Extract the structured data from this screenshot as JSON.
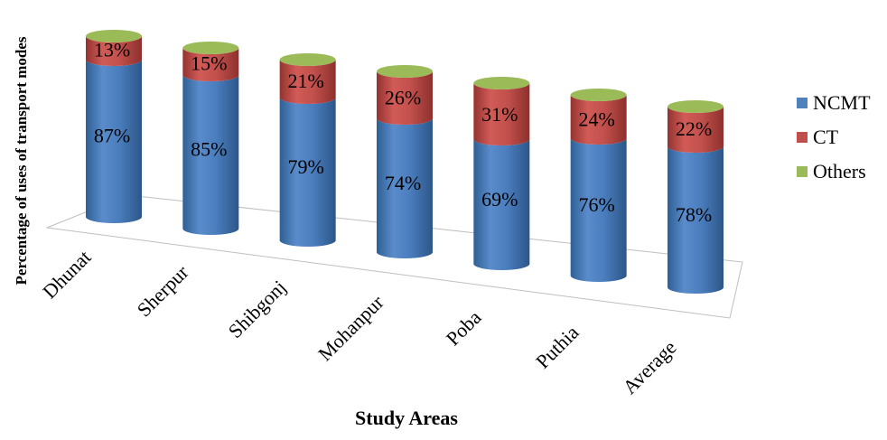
{
  "chart_data": {
    "type": "bar",
    "stacked": true,
    "style": "3d-cylinder",
    "categories": [
      "Dhunat",
      "Sherpur",
      "Shibgonj",
      "Mohanpur",
      "Poba",
      "Puthia",
      "Average"
    ],
    "series": [
      {
        "name": "NCMT",
        "values": [
          87,
          85,
          79,
          74,
          69,
          76,
          78
        ],
        "labels": [
          "87%",
          "85%",
          "79%",
          "74%",
          "69%",
          "76%",
          "78%"
        ],
        "color": "#4F81BD"
      },
      {
        "name": "CT",
        "values": [
          13,
          15,
          21,
          26,
          31,
          24,
          22
        ],
        "labels": [
          "13%",
          "15%",
          "21%",
          "26%",
          "31%",
          "24%",
          "22%"
        ],
        "color": "#C0504D"
      },
      {
        "name": "Others",
        "values": [
          0,
          0,
          0,
          0,
          0,
          0,
          0
        ],
        "color": "#9BBB59"
      }
    ],
    "xlabel": "Study Areas",
    "ylabel": "Percentage of uses of transport modes",
    "ylim": [
      0,
      100
    ],
    "legend": "right"
  }
}
